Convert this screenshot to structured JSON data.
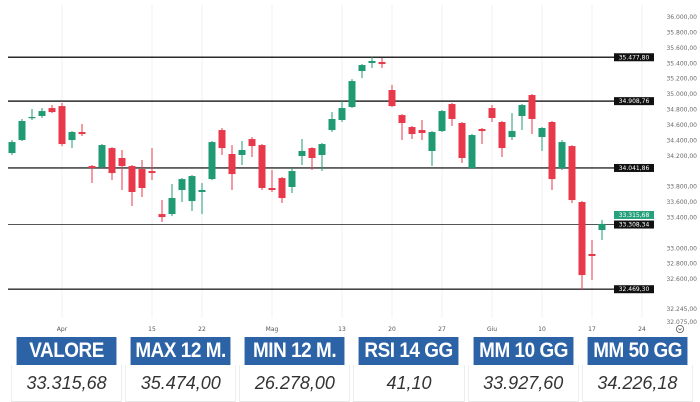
{
  "chart_data": {
    "type": "candlestick",
    "colors": {
      "up": "#1f9a73",
      "down": "#e8394b",
      "level_line": "#333333",
      "last_price": "#26a17b"
    },
    "y_range": [
      32075,
      36100
    ],
    "y_ticks": [
      "36.000,00",
      "35.800,00",
      "35.600,00",
      "35.400,00",
      "35.200,00",
      "35.000,00",
      "34.800,00",
      "34.600,00",
      "34.400,00",
      "34.200,00",
      "33.800,00",
      "33.600,00",
      "33.400,00",
      "33.000,00",
      "32.800,00",
      "32.600,00",
      "32.245,00",
      "32.075,00"
    ],
    "x_ticks": [
      {
        "label": "Apr",
        "candle": 5
      },
      {
        "label": "15",
        "candle": 14
      },
      {
        "label": "22",
        "candle": 19
      },
      {
        "label": "Mag",
        "candle": 26
      },
      {
        "label": "13",
        "candle": 33
      },
      {
        "label": "20",
        "candle": 38
      },
      {
        "label": "27",
        "candle": 43
      },
      {
        "label": "Giu",
        "candle": 48
      },
      {
        "label": "10",
        "candle": 53
      },
      {
        "label": "17",
        "candle": 58
      },
      {
        "label": "24",
        "candle": 63
      }
    ],
    "levels": [
      {
        "value": 35477.8,
        "label": "35.477,80"
      },
      {
        "value": 34908.76,
        "label": "34.908,76"
      },
      {
        "value": 34041.86,
        "label": "34.041,86"
      },
      {
        "value": 33308.34,
        "label": "33.308,34"
      },
      {
        "value": 32469.3,
        "label": "32.469,30"
      }
    ],
    "last_price": {
      "value": 33315.68,
      "label": "33.315,68"
    },
    "ohlc": [
      [
        34236,
        34404,
        34210,
        34378
      ],
      [
        34404,
        34677,
        34391,
        34651
      ],
      [
        34690,
        34806,
        34664,
        34703
      ],
      [
        34716,
        34819,
        34690,
        34780
      ],
      [
        34819,
        34858,
        34754,
        34767
      ],
      [
        34845,
        34884,
        34326,
        34352
      ],
      [
        34404,
        34521,
        34300,
        34508
      ],
      [
        34508,
        34612,
        34456,
        34482
      ],
      [
        34067,
        34080,
        33847,
        34041
      ],
      [
        34054,
        34352,
        34041,
        34339
      ],
      [
        34300,
        34313,
        33885,
        33976
      ],
      [
        34171,
        34275,
        33756,
        34067
      ],
      [
        34067,
        34080,
        33548,
        33730
      ],
      [
        34028,
        34145,
        33665,
        33782
      ],
      [
        34002,
        34300,
        33885,
        33976
      ],
      [
        33444,
        33626,
        33341,
        33405
      ],
      [
        33444,
        33834,
        33418,
        33652
      ],
      [
        33756,
        33911,
        33600,
        33898
      ],
      [
        33613,
        33950,
        33483,
        33937
      ],
      [
        33730,
        33847,
        33444,
        33756
      ],
      [
        33898,
        34391,
        33885,
        34378
      ],
      [
        34534,
        34560,
        34210,
        34300
      ],
      [
        34223,
        34339,
        33756,
        33963
      ],
      [
        34210,
        34391,
        34080,
        34275
      ],
      [
        34417,
        34443,
        34184,
        34326
      ],
      [
        34339,
        34352,
        33756,
        33782
      ],
      [
        33782,
        34015,
        33730,
        33756
      ],
      [
        33911,
        33924,
        33587,
        33652
      ],
      [
        33795,
        34041,
        33717,
        34002
      ],
      [
        34197,
        34417,
        34080,
        34262
      ],
      [
        34300,
        34313,
        34015,
        34171
      ],
      [
        34210,
        34365,
        34002,
        34352
      ],
      [
        34534,
        34767,
        34508,
        34677
      ],
      [
        34664,
        34910,
        34638,
        34819
      ],
      [
        34832,
        35195,
        34819,
        35169
      ],
      [
        35299,
        35390,
        35208,
        35377
      ],
      [
        35403,
        35481,
        35338,
        35429
      ],
      [
        35416,
        35468,
        35338,
        35390
      ],
      [
        35053,
        35118,
        34832,
        34845
      ],
      [
        34728,
        34741,
        34404,
        34625
      ],
      [
        34573,
        34586,
        34417,
        34482
      ],
      [
        34534,
        34664,
        34404,
        34495
      ],
      [
        34262,
        34521,
        34067,
        34508
      ],
      [
        34521,
        34793,
        34508,
        34780
      ],
      [
        34871,
        34884,
        34586,
        34677
      ],
      [
        34625,
        34638,
        34106,
        34171
      ],
      [
        34041,
        34482,
        34028,
        34469
      ],
      [
        34547,
        34560,
        34352,
        34521
      ],
      [
        34819,
        34858,
        34638,
        34690
      ],
      [
        34638,
        34651,
        34184,
        34300
      ],
      [
        34443,
        34754,
        34404,
        34521
      ],
      [
        34716,
        34871,
        34534,
        34858
      ],
      [
        34988,
        35001,
        34482,
        34677
      ],
      [
        34443,
        34573,
        34262,
        34560
      ],
      [
        34638,
        34651,
        33756,
        33898
      ],
      [
        34041,
        34404,
        34015,
        34378
      ],
      [
        34326,
        34339,
        33587,
        33626
      ],
      [
        33600,
        33613,
        32459,
        32653
      ],
      [
        32926,
        33108,
        32589,
        32900
      ],
      [
        33237,
        33367,
        33108,
        33316
      ]
    ]
  },
  "table": {
    "headers": [
      "VALORE",
      "MAX 12 M.",
      "MIN 12 M.",
      "RSI 14 GG",
      "MM 10 GG",
      "MM 50 GG"
    ],
    "values": [
      "33.315,68",
      "35.474,00",
      "26.278,00",
      "41,10",
      "33.927,60",
      "34.226,18"
    ]
  },
  "settings_icon": "gear-icon"
}
